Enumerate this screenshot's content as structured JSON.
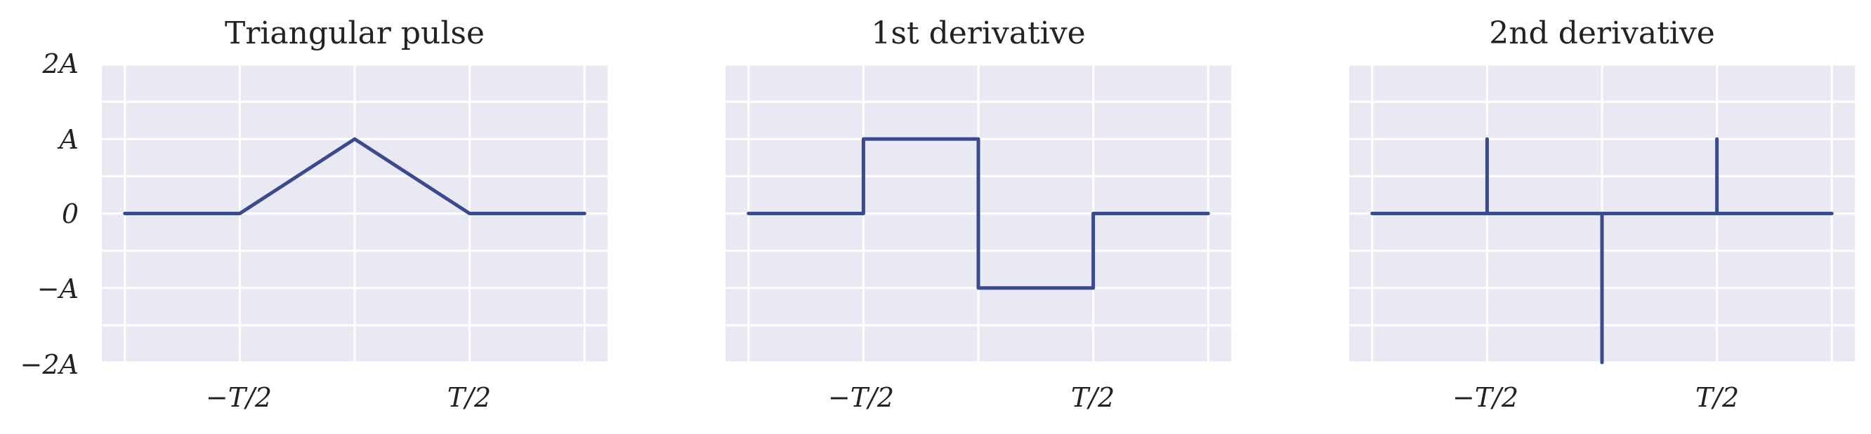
{
  "chart_data": [
    {
      "type": "line",
      "title": "Triangular pulse",
      "xlabel": "",
      "ylabel": "",
      "x_ticks": [
        "−T/2",
        "T/2"
      ],
      "y_ticks": [
        "2A",
        "A",
        "0",
        "−A",
        "−2A"
      ],
      "ylim": [
        -2,
        2
      ],
      "xlim": [
        -1.1,
        1.1
      ],
      "grid": true,
      "series": [
        {
          "x": [
            -1,
            -0.5,
            0,
            0.5,
            1
          ],
          "y": [
            0,
            0,
            1,
            0,
            0
          ]
        }
      ]
    },
    {
      "type": "line",
      "title": "1st derivative",
      "xlabel": "",
      "ylabel": "",
      "x_ticks": [
        "−T/2",
        "T/2"
      ],
      "ylim": [
        -2,
        2
      ],
      "xlim": [
        -1.1,
        1.1
      ],
      "grid": true,
      "series": [
        {
          "x": [
            -1,
            -0.5,
            -0.5,
            0,
            0,
            0.5,
            0.5,
            1
          ],
          "y": [
            0,
            0,
            1,
            1,
            -1,
            -1,
            0,
            0
          ]
        }
      ]
    },
    {
      "type": "line",
      "title": "2nd derivative",
      "xlabel": "",
      "ylabel": "",
      "x_ticks": [
        "−T/2",
        "T/2"
      ],
      "ylim": [
        -2,
        2
      ],
      "xlim": [
        -1.1,
        1.1
      ],
      "grid": true,
      "series": [
        {
          "x": [
            -1,
            1
          ],
          "y": [
            0,
            0
          ]
        },
        {
          "x": [
            -0.5,
            -0.5
          ],
          "y": [
            0,
            1
          ]
        },
        {
          "x": [
            0,
            0
          ],
          "y": [
            0,
            -2
          ]
        },
        {
          "x": [
            0.5,
            0.5
          ],
          "y": [
            0,
            1
          ]
        }
      ]
    }
  ],
  "colors": {
    "line": "#3b4a8c",
    "plot_background": "#e8e9f2",
    "grid": "#ffffff"
  }
}
